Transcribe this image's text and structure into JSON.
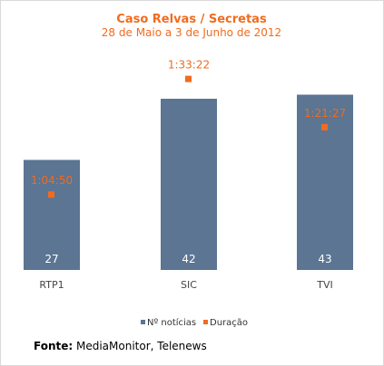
{
  "chart_data": {
    "type": "bar",
    "title": "Caso Relvas / Secretas",
    "subtitle": "28 de Maio a 3 de Junho de 2012",
    "categories": [
      "RTP1",
      "SIC",
      "TVI"
    ],
    "series": [
      {
        "name": "Nº notícias",
        "type": "bar",
        "values": [
          27,
          42,
          43
        ]
      },
      {
        "name": "Duração",
        "type": "scatter",
        "values": [
          "1:04:50",
          "1:33:22",
          "1:21:27"
        ]
      }
    ],
    "legend_position": "bottom",
    "grid": false
  },
  "colors": {
    "bar": "#5b7593",
    "marker": "#f26b1d",
    "title": "#f26b1d",
    "bar_label": "#ffffff",
    "category": "#444444"
  },
  "source": {
    "label": "Fonte:",
    "text": " MediaMonitor, Telenews"
  }
}
